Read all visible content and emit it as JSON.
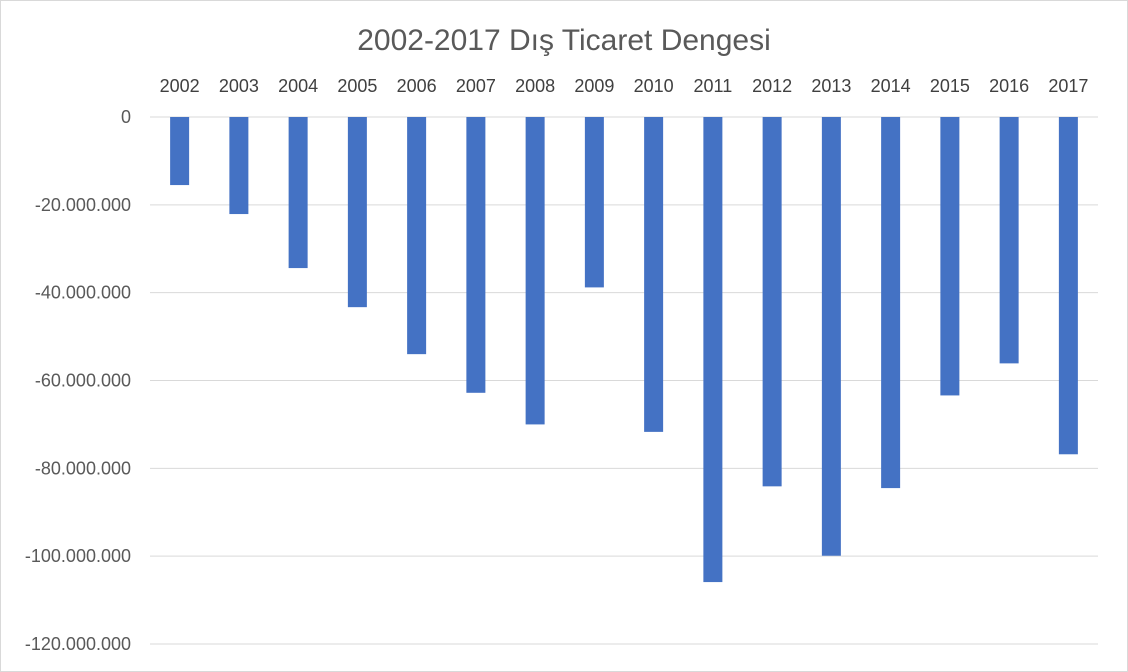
{
  "chart_data": {
    "type": "bar",
    "title": "2002-2017 Dış Ticaret Dengesi",
    "xlabel": "",
    "ylabel": "",
    "categories": [
      "2002",
      "2003",
      "2004",
      "2005",
      "2006",
      "2007",
      "2008",
      "2009",
      "2010",
      "2011",
      "2012",
      "2013",
      "2014",
      "2015",
      "2016",
      "2017"
    ],
    "values": [
      -15500000,
      -22100000,
      -34400000,
      -43300000,
      -54000000,
      -62800000,
      -70000000,
      -38800000,
      -71700000,
      -105900000,
      -84100000,
      -99900000,
      -84500000,
      -63400000,
      -56100000,
      -76800000
    ],
    "ylim": [
      -120000000,
      0
    ],
    "yticks": [
      0,
      -20000000,
      -40000000,
      -60000000,
      -80000000,
      -100000000,
      -120000000
    ],
    "ytick_labels": [
      "0",
      "-20.000.000",
      "-40.000.000",
      "-60.000.000",
      "-80.000.000",
      "-100.000.000",
      "-120.000.000"
    ],
    "x_axis_labels_position": "top",
    "grid": true,
    "legend": "none",
    "bar_color": "#4472C4"
  }
}
